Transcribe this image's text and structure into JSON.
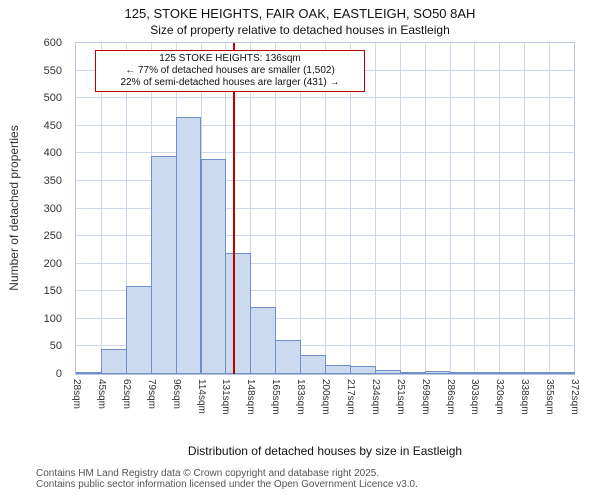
{
  "title": "125, STOKE HEIGHTS, FAIR OAK, EASTLEIGH, SO50 8AH",
  "subtitle": "Size of property relative to detached houses in Eastleigh",
  "annotation": {
    "line1": "125 STOKE HEIGHTS: 136sqm",
    "line2": "← 77% of detached houses are smaller (1,502)",
    "line3": "22% of semi-detached houses are larger (431) →"
  },
  "chart_data": {
    "type": "bar",
    "title": "125, STOKE HEIGHTS, FAIR OAK, EASTLEIGH, SO50 8AH — Size of property relative to detached houses in Eastleigh",
    "xlabel": "Distribution of detached houses by size in Eastleigh",
    "ylabel": "Number of detached properties",
    "categories": [
      "28sqm",
      "45sqm",
      "62sqm",
      "79sqm",
      "96sqm",
      "114sqm",
      "131sqm",
      "148sqm",
      "165sqm",
      "183sqm",
      "200sqm",
      "217sqm",
      "234sqm",
      "251sqm",
      "269sqm",
      "286sqm",
      "303sqm",
      "320sqm",
      "338sqm",
      "355sqm",
      "372sqm"
    ],
    "bin_edges_sqm": [
      28,
      45,
      62,
      79,
      96,
      114,
      131,
      148,
      165,
      183,
      200,
      217,
      234,
      251,
      269,
      286,
      303,
      320,
      338,
      355,
      372
    ],
    "values": [
      2,
      45,
      160,
      395,
      465,
      390,
      220,
      122,
      62,
      35,
      16,
      15,
      7,
      4,
      6,
      2,
      2,
      1,
      1,
      1
    ],
    "ylim": [
      0,
      600
    ],
    "ytick_step": 50,
    "grid": true,
    "legend": "none",
    "marker_value_sqm": 136,
    "bar_fill": "#ccdaf0",
    "bar_border": "#6e8fc9",
    "marker_color": "#c00000",
    "grid_color": "#cdd8ec"
  },
  "footer": {
    "line1": "Contains HM Land Registry data © Crown copyright and database right 2025.",
    "line2": "Contains public sector information licensed under the Open Government Licence v3.0."
  }
}
